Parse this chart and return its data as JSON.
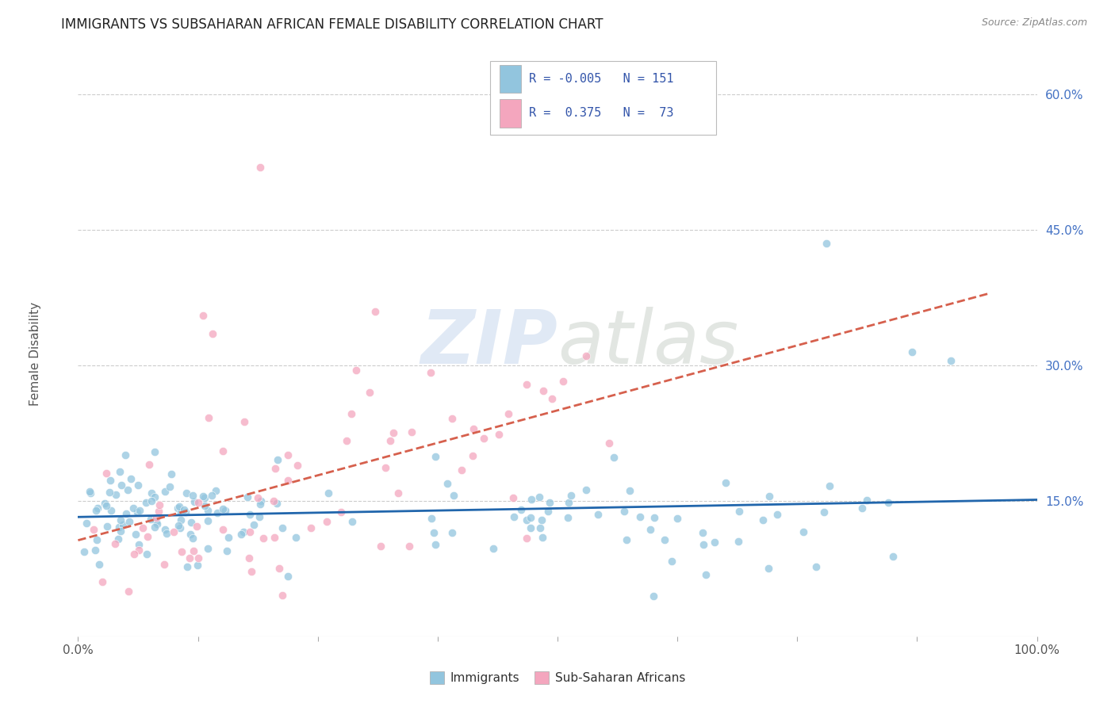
{
  "title": "IMMIGRANTS VS SUBSAHARAN AFRICAN FEMALE DISABILITY CORRELATION CHART",
  "source_text": "Source: ZipAtlas.com",
  "ylabel": "Female Disability",
  "x_min": 0.0,
  "x_max": 1.0,
  "y_min": 0.0,
  "y_max": 0.65,
  "y_ticks": [
    0.15,
    0.3,
    0.45,
    0.6
  ],
  "y_tick_labels": [
    "15.0%",
    "30.0%",
    "45.0%",
    "60.0%"
  ],
  "x_ticks": [
    0.0,
    0.125,
    0.25,
    0.375,
    0.5,
    0.625,
    0.75,
    0.875,
    1.0
  ],
  "x_tick_labels_show": {
    "0.0": "0.0%",
    "1.0": "100.0%"
  },
  "blue_color": "#92C5DE",
  "pink_color": "#F4A6BE",
  "blue_line_color": "#2166AC",
  "pink_line_color": "#D6604D",
  "blue_R": -0.005,
  "pink_R": 0.375,
  "blue_N": 151,
  "pink_N": 73,
  "watermark_zip": "ZIP",
  "watermark_atlas": "atlas",
  "background_color": "#FFFFFF",
  "grid_color": "#CCCCCC",
  "title_fontsize": 12,
  "tick_label_color_y": "#4472C4",
  "tick_label_color_x": "#555555",
  "legend_top_R1": "R = -0.005",
  "legend_top_N1": "N = 151",
  "legend_top_R2": "R =  0.375",
  "legend_top_N2": "N =  73",
  "bottom_legend_label1": "Immigrants",
  "bottom_legend_label2": "Sub-Saharan Africans"
}
